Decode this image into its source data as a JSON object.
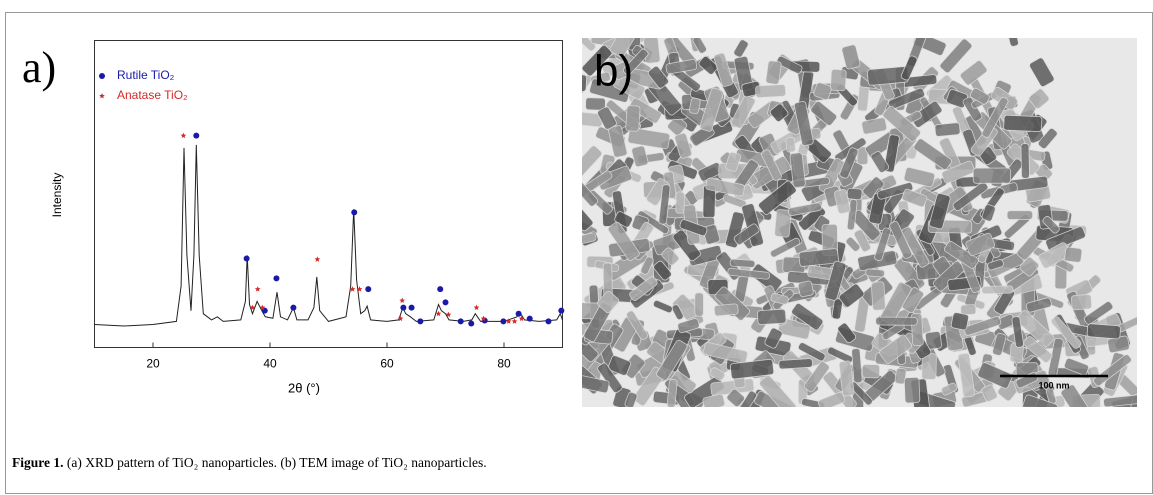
{
  "chart_data": {
    "type": "line",
    "xlabel": "2θ (°)",
    "ylabel": "Intensity",
    "xlim": [
      10,
      90
    ],
    "xticks": [
      20,
      40,
      60,
      80
    ],
    "ylim": [
      0,
      100
    ],
    "series": [
      {
        "color": "#222222",
        "x": [
          10,
          15,
          20,
          24,
          24.8,
          25.3,
          25.8,
          26.5,
          27,
          27.4,
          27.9,
          28.6,
          30,
          31,
          32,
          35,
          35.8,
          36.1,
          36.5,
          37,
          37.8,
          38.6,
          39.2,
          40.5,
          41.2,
          41.8,
          43,
          44,
          44.6,
          46.5,
          47.5,
          48,
          48.5,
          50,
          53,
          53.8,
          54.3,
          54.8,
          55.5,
          56.2,
          56.6,
          57.2,
          60,
          62,
          62.7,
          63.2,
          64,
          65,
          68,
          68.8,
          69.3,
          70,
          70.6,
          73,
          74.5,
          75.1,
          76,
          80,
          82.2,
          82.7,
          83.5,
          86,
          89,
          89.6,
          90
        ],
        "values": [
          7.5,
          7,
          7.5,
          8.5,
          20,
          65,
          30,
          12,
          30,
          66,
          30,
          11,
          9,
          10,
          8.5,
          9,
          15,
          30,
          14,
          11,
          15,
          12,
          10,
          9.5,
          18,
          10,
          9,
          13,
          9,
          9,
          13,
          23,
          12,
          8.5,
          10,
          20,
          45,
          22,
          11,
          12,
          13.5,
          9,
          8.5,
          9,
          13,
          11,
          10,
          8.5,
          9,
          14,
          12,
          11,
          9,
          8.5,
          9,
          11,
          8.5,
          8.5,
          10,
          11.5,
          9,
          8.5,
          9,
          11,
          9
        ]
      },
      {
        "name": "Rutile TiO₂",
        "color": "#1a1aa8",
        "marker": "dot",
        "x": [
          27.4,
          36.0,
          39.1,
          41.1,
          44.0,
          54.4,
          56.8,
          62.8,
          64.2,
          65.7,
          69.1,
          70.0,
          72.6,
          74.4,
          76.7,
          79.9,
          82.5,
          84.4,
          87.6,
          89.8
        ],
        "values": [
          69,
          29,
          12,
          22.5,
          13,
          44,
          19,
          13,
          13,
          8.5,
          19,
          14.7,
          8.5,
          7.8,
          8.8,
          8.5,
          11,
          9.4,
          8.5,
          12
        ]
      },
      {
        "name": "Anatase TiO₂",
        "color": "#d42a2a",
        "marker": "star",
        "x": [
          25.2,
          37.0,
          37.9,
          38.7,
          48.1,
          54.1,
          55.3,
          62.3,
          62.6,
          68.8,
          70.5,
          75.3,
          76.5,
          80.8,
          81.8,
          83.0
        ],
        "values": [
          69,
          13,
          19,
          13,
          28.7,
          19,
          19,
          9.4,
          15.3,
          11,
          10.7,
          13,
          9.4,
          8.5,
          8.5,
          9.4
        ]
      }
    ]
  },
  "figure": {
    "panel_a_label": "a)",
    "panel_b_label": "b)",
    "scale_bar": "100 nm",
    "caption_label": "Figure 1.",
    "caption_text": "(a) XRD pattern of TiO₂ nanoparticles. (b) TEM image of TiO₂ nanoparticles."
  }
}
